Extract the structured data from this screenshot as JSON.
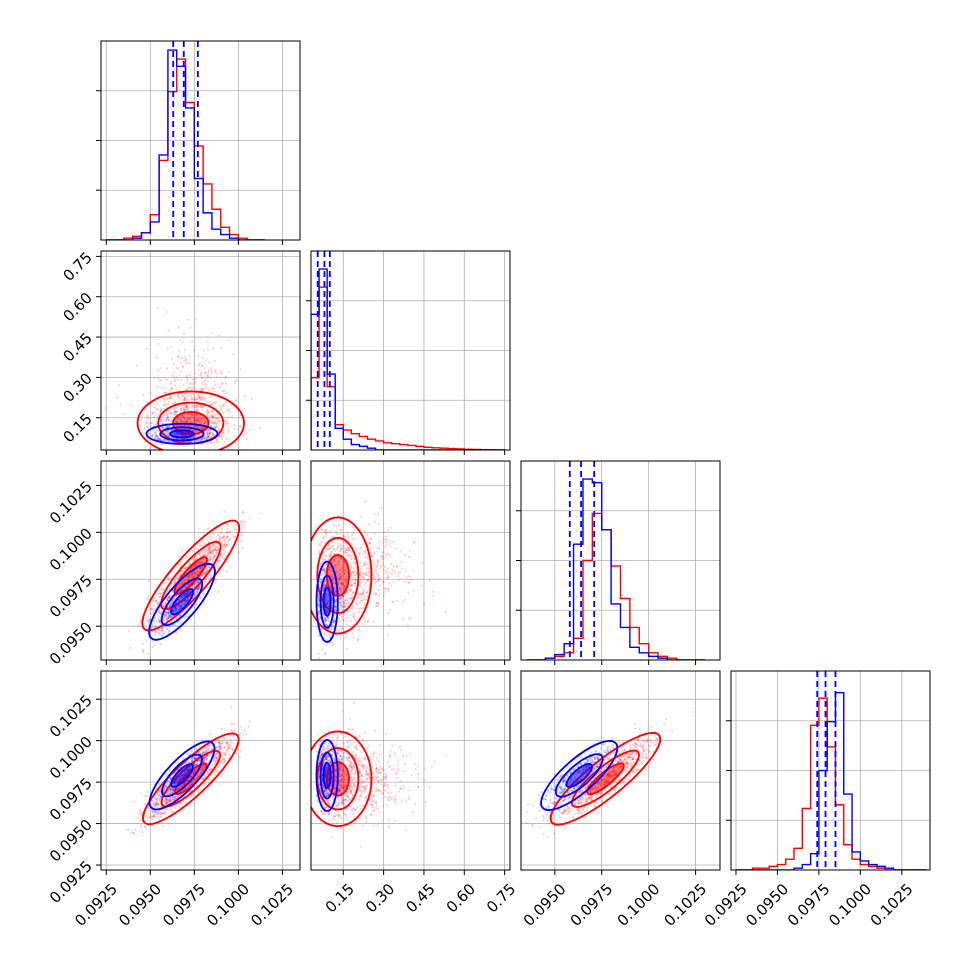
{
  "chart_data": {
    "type": "scatter",
    "title": "",
    "layout": "corner-plot 4x4 lower triangle",
    "grid": true,
    "legend": "none",
    "colors": {
      "blue_series": "#0000ff",
      "red_series": "#ff0000"
    },
    "parameters": [
      {
        "range": [
          0.0922,
          0.1035
        ],
        "ticks": [
          0.0925,
          0.095,
          0.0975,
          0.1,
          0.1025
        ],
        "tick_labels": [
          "0.0925",
          "0.0950",
          "0.0975",
          "0.1000",
          "0.1025"
        ]
      },
      {
        "range": [
          0.03,
          0.77
        ],
        "ticks": [
          0.15,
          0.3,
          0.45,
          0.6,
          0.75
        ],
        "tick_labels": [
          "0.15",
          "0.30",
          "0.45",
          "0.60",
          "0.75"
        ]
      },
      {
        "range": [
          0.0932,
          0.1038
        ],
        "ticks": [
          0.095,
          0.0975,
          0.1,
          0.1025
        ],
        "tick_labels": [
          "0.0950",
          "0.0975",
          "0.1000",
          "0.1025"
        ]
      },
      {
        "range": [
          0.0922,
          0.1042
        ],
        "ticks": [
          0.0925,
          0.095,
          0.0975,
          0.1,
          0.1025
        ],
        "tick_labels": [
          "0.0925",
          "0.0950",
          "0.0975",
          "0.1000",
          "0.1025"
        ]
      }
    ],
    "series": [
      {
        "color": "#0000ff",
        "mean": [
          0.0968,
          0.09,
          0.0963,
          0.0979
        ],
        "std": [
          0.0008,
          0.035,
          0.0009,
          0.0009
        ],
        "quantile_markers": [
          [
            0.0963,
            0.0969,
            0.0977
          ],
          [
            0.055,
            0.08,
            0.1
          ],
          [
            0.0958,
            0.0964,
            0.0971
          ],
          [
            0.0974,
            0.0979,
            0.0985
          ]
        ]
      },
      {
        "color": "#ff0000",
        "mean": [
          0.0973,
          0.13,
          0.0977,
          0.0977
        ],
        "std": [
          0.0012,
          0.11,
          0.0013,
          0.0012
        ],
        "quantile_markers": []
      }
    ],
    "histograms": [
      {
        "param": 0,
        "bin_edges": [
          0.0925,
          0.093,
          0.0935,
          0.094,
          0.0945,
          0.095,
          0.0955,
          0.096,
          0.0965,
          0.097,
          0.0975,
          0.098,
          0.0985,
          0.099,
          0.0995,
          0.1,
          0.1005,
          0.101,
          0.1015
        ],
        "blue": [
          0,
          0,
          0,
          0.01,
          0.04,
          0.1,
          0.47,
          1.05,
          0.96,
          0.73,
          0.34,
          0.15,
          0.06,
          0.03,
          0.01,
          0,
          0,
          0
        ],
        "red": [
          0,
          0,
          0.01,
          0.02,
          0.04,
          0.14,
          0.44,
          0.82,
          1.0,
          0.76,
          0.52,
          0.31,
          0.17,
          0.07,
          0.03,
          0.01,
          0,
          0
        ]
      },
      {
        "param": 1,
        "bin_edges": [
          0.03,
          0.06,
          0.09,
          0.12,
          0.15,
          0.18,
          0.21,
          0.24,
          0.27,
          0.3,
          0.33,
          0.36,
          0.39,
          0.42,
          0.45,
          0.48,
          0.51,
          0.54,
          0.57,
          0.6,
          0.63,
          0.66,
          0.69,
          0.72,
          0.75
        ],
        "blue": [
          0.75,
          1.0,
          0.42,
          0.12,
          0.06,
          0.03,
          0.02,
          0.01,
          0,
          0,
          0,
          0,
          0,
          0,
          0,
          0,
          0,
          0,
          0,
          0,
          0,
          0,
          0,
          0
        ],
        "red": [
          0.4,
          0.9,
          0.35,
          0.14,
          0.11,
          0.09,
          0.075,
          0.06,
          0.05,
          0.04,
          0.035,
          0.03,
          0.025,
          0.02,
          0.015,
          0.012,
          0.01,
          0.008,
          0.006,
          0.004,
          0.003,
          0.002,
          0.001,
          0
        ]
      },
      {
        "param": 2,
        "bin_edges": [
          0.0935,
          0.094,
          0.0945,
          0.095,
          0.0955,
          0.096,
          0.0965,
          0.097,
          0.0975,
          0.098,
          0.0985,
          0.099,
          0.0995,
          0.1,
          0.1005,
          0.101,
          0.1015,
          0.102,
          0.1025,
          0.103
        ],
        "blue": [
          0,
          0,
          0.01,
          0.03,
          0.09,
          0.64,
          1.0,
          0.98,
          0.72,
          0.31,
          0.18,
          0.07,
          0.04,
          0.02,
          0.01,
          0,
          0,
          0,
          0
        ],
        "red": [
          0,
          0,
          0.01,
          0.02,
          0.04,
          0.12,
          0.55,
          0.81,
          0.72,
          0.52,
          0.34,
          0.18,
          0.09,
          0.04,
          0.02,
          0.01,
          0,
          0,
          0
        ]
      },
      {
        "param": 3,
        "bin_edges": [
          0.0925,
          0.093,
          0.0935,
          0.094,
          0.0945,
          0.095,
          0.0955,
          0.096,
          0.0965,
          0.097,
          0.0975,
          0.098,
          0.0985,
          0.099,
          0.0995,
          0.1,
          0.1005,
          0.101,
          0.1015,
          0.102,
          0.1025,
          0.103,
          0.1035,
          0.104
        ],
        "blue": [
          0,
          0,
          0,
          0,
          0,
          0,
          0,
          0.01,
          0.03,
          0.09,
          0.55,
          0.82,
          0.98,
          0.42,
          0.1,
          0.05,
          0.03,
          0.02,
          0.01,
          0,
          0,
          0,
          0
        ],
        "red": [
          0,
          0,
          0.01,
          0.01,
          0.02,
          0.03,
          0.06,
          0.12,
          0.34,
          0.8,
          0.95,
          0.68,
          0.36,
          0.14,
          0.06,
          0.03,
          0.02,
          0.01,
          0,
          0,
          0,
          0,
          0
        ]
      }
    ]
  }
}
